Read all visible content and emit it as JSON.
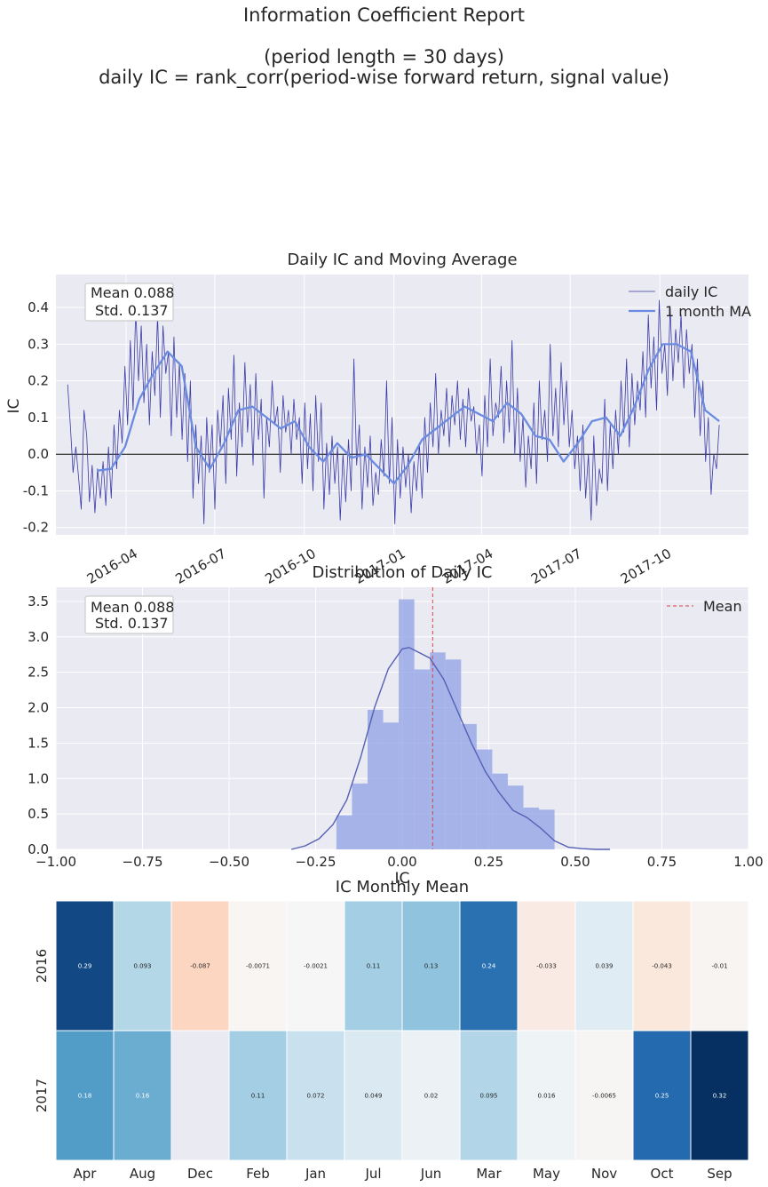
{
  "report": {
    "title": "Information Coefficient Report",
    "subtitle_line1": "(period length = 30 days)",
    "subtitle_line2": "daily IC = rank_corr(period-wise forward return, signal value)"
  },
  "colors": {
    "panel_bg": "#EAEAF2",
    "grid": "#FFFFFF",
    "daily_ic": "#3A3AA8",
    "moving_average": "#6A8BE0",
    "hist_bars": "#8DA0E6",
    "kde": "#5560B5",
    "mean_line": "#D64545"
  },
  "chart_data": [
    {
      "type": "line",
      "title": "Daily IC and Moving Average",
      "xlabel": "",
      "ylabel": "IC",
      "x_start": "2016-02-01",
      "x_end": "2017-12-01",
      "xlim": [
        "2016-01-20",
        "2017-12-31"
      ],
      "ylim": [
        -0.22,
        0.49
      ],
      "x_ticks": [
        "2016-04",
        "2016-07",
        "2016-10",
        "2017-01",
        "2017-04",
        "2017-07",
        "2017-10"
      ],
      "y_ticks": [
        -0.2,
        -0.1,
        0.0,
        0.1,
        0.2,
        0.3,
        0.4
      ],
      "zero_line": true,
      "grid": true,
      "legend": "top-right",
      "stats_box": {
        "mean": "Mean 0.088",
        "std": "Std. 0.137"
      },
      "series": [
        {
          "name": "daily IC",
          "style": "thin line",
          "values": [
            0.19,
            0.08,
            -0.05,
            0.02,
            -0.06,
            -0.15,
            0.12,
            0.05,
            -0.13,
            -0.03,
            -0.16,
            -0.04,
            -0.12,
            -0.02,
            -0.14,
            0.02,
            -0.12,
            0.08,
            -0.04,
            0.12,
            0.03,
            0.24,
            0.08,
            0.31,
            0.12,
            0.4,
            0.2,
            0.35,
            0.14,
            0.3,
            0.08,
            0.28,
            0.16,
            0.38,
            0.1,
            0.35,
            0.22,
            0.28,
            0.05,
            0.32,
            0.1,
            0.25,
            0.04,
            0.22,
            -0.02,
            0.2,
            -0.12,
            0.08,
            -0.08,
            0.05,
            -0.19,
            0.1,
            -0.05,
            0.08,
            -0.15,
            0.12,
            0.02,
            0.16,
            -0.08,
            0.18,
            0.04,
            0.27,
            -0.06,
            0.14,
            0.02,
            0.25,
            0.06,
            0.19,
            -0.03,
            0.22,
            0.04,
            0.15,
            -0.12,
            0.1,
            0.02,
            0.2,
            0.08,
            0.13,
            -0.05,
            0.16,
            0.06,
            0.12,
            0.0,
            0.15,
            0.04,
            0.1,
            -0.08,
            0.14,
            -0.04,
            0.11,
            -0.1,
            0.16,
            -0.02,
            0.14,
            -0.15,
            0.03,
            -0.11,
            0.05,
            -0.08,
            0.02,
            -0.18,
            0.0,
            -0.13,
            0.04,
            -0.1,
            0.26,
            -0.03,
            0.08,
            -0.15,
            0.02,
            -0.09,
            0.05,
            -0.14,
            -0.05,
            -0.11,
            0.04,
            -0.06,
            0.2,
            -0.08,
            0.1,
            -0.19,
            0.04,
            -0.12,
            0.02,
            -0.09,
            0.0,
            -0.16,
            -0.02,
            -0.1,
            0.03,
            -0.12,
            0.1,
            -0.05,
            0.14,
            0.02,
            0.22,
            0.0,
            0.12,
            0.05,
            0.18,
            0.02,
            0.16,
            0.08,
            0.2,
            0.04,
            0.15,
            0.02,
            0.18,
            0.09,
            0.13,
            0.0,
            0.08,
            -0.06,
            0.16,
            0.02,
            0.26,
            0.05,
            0.14,
            0.1,
            0.24,
            0.03,
            0.2,
            0.06,
            0.31,
            0.0,
            0.18,
            -0.02,
            0.1,
            -0.09,
            0.05,
            -0.04,
            0.14,
            -0.08,
            0.2,
            0.04,
            0.12,
            -0.02,
            0.3,
            0.05,
            0.18,
            0.02,
            0.25,
            0.08,
            0.2,
            0.02,
            0.12,
            -0.04,
            0.05,
            -0.1,
            0.08,
            -0.12,
            0.0,
            -0.18,
            0.05,
            -0.14,
            -0.04,
            -0.08,
            0.15,
            -0.1,
            0.08,
            -0.04,
            0.12,
            0.0,
            0.2,
            0.06,
            0.26,
            0.02,
            0.22,
            0.08,
            0.2,
            0.12,
            0.28,
            0.1,
            0.38,
            0.18,
            0.32,
            0.12,
            0.42,
            0.22,
            0.3,
            0.16,
            0.4,
            0.2,
            0.34,
            0.25,
            0.38,
            0.18,
            0.34,
            0.22,
            0.3,
            0.1,
            0.26,
            0.05,
            0.2,
            -0.02,
            0.1,
            -0.11,
            0.0,
            -0.04,
            0.08
          ]
        },
        {
          "name": "1 month MA",
          "style": "thick line",
          "values": [
            -0.045,
            -0.04,
            0.02,
            0.15,
            0.22,
            0.28,
            0.24,
            0.02,
            -0.04,
            0.03,
            0.12,
            0.13,
            0.1,
            0.07,
            0.09,
            0.02,
            -0.02,
            0.03,
            -0.01,
            0.0,
            -0.04,
            -0.08,
            -0.03,
            0.04,
            0.07,
            0.1,
            0.13,
            0.11,
            0.09,
            0.14,
            0.11,
            0.05,
            0.04,
            -0.02,
            0.03,
            0.09,
            0.1,
            0.05,
            0.13,
            0.23,
            0.3,
            0.3,
            0.28,
            0.12,
            0.09
          ]
        }
      ]
    },
    {
      "type": "bar",
      "title": "Distribution of Daily IC",
      "xlabel": "IC",
      "ylabel": "",
      "xlim": [
        -1.0,
        1.0
      ],
      "ylim": [
        0.0,
        3.7
      ],
      "x_ticks": [
        "−1.00",
        "−0.75",
        "−0.50",
        "−0.25",
        "0.00",
        "0.25",
        "0.50",
        "0.75",
        "1.00"
      ],
      "y_ticks": [
        "0.0",
        "0.5",
        "1.0",
        "1.5",
        "2.0",
        "2.5",
        "3.0",
        "3.5"
      ],
      "grid": true,
      "legend": "top-right",
      "stats_box": {
        "mean": "Mean 0.088",
        "std": "Std. 0.137"
      },
      "bin_edges": [
        -0.19,
        -0.145,
        -0.1,
        -0.055,
        -0.01,
        0.035,
        0.08,
        0.125,
        0.17,
        0.215,
        0.26,
        0.305,
        0.35,
        0.395,
        0.44
      ],
      "values": [
        0.48,
        0.93,
        1.97,
        1.79,
        3.53,
        2.54,
        2.78,
        2.68,
        1.77,
        1.41,
        1.07,
        0.9,
        0.59,
        0.56
      ],
      "kde": {
        "x": [
          -0.32,
          -0.28,
          -0.24,
          -0.2,
          -0.16,
          -0.12,
          -0.08,
          -0.04,
          0.0,
          0.02,
          0.04,
          0.08,
          0.12,
          0.16,
          0.2,
          0.24,
          0.28,
          0.32,
          0.36,
          0.4,
          0.44,
          0.48,
          0.52,
          0.56,
          0.6
        ],
        "y": [
          0.0,
          0.05,
          0.15,
          0.35,
          0.7,
          1.3,
          2.0,
          2.55,
          2.83,
          2.85,
          2.8,
          2.7,
          2.4,
          1.95,
          1.5,
          1.1,
          0.8,
          0.55,
          0.45,
          0.3,
          0.12,
          0.03,
          0.01,
          0.0,
          0.0
        ]
      },
      "mean_line": {
        "name": "Mean",
        "x": 0.088
      }
    },
    {
      "type": "heatmap",
      "title": "IC Monthly Mean",
      "x_categories": [
        "Apr",
        "Aug",
        "Dec",
        "Feb",
        "Jan",
        "Jul",
        "Jun",
        "Mar",
        "May",
        "Nov",
        "Oct",
        "Sep"
      ],
      "y_categories": [
        "2016",
        "2017"
      ],
      "color_range": [
        -0.32,
        0.32
      ],
      "cells": [
        [
          "0.29",
          "0.093",
          "-0.087",
          "-0.0071",
          "-0.0021",
          "0.11",
          "0.13",
          "0.24",
          "-0.033",
          "0.039",
          "-0.043",
          "-0.01"
        ],
        [
          "0.18",
          "0.16",
          "",
          "0.11",
          "0.072",
          "0.049",
          "0.02",
          "0.095",
          "0.016",
          "-0.0065",
          "0.25",
          "0.32"
        ]
      ]
    }
  ]
}
